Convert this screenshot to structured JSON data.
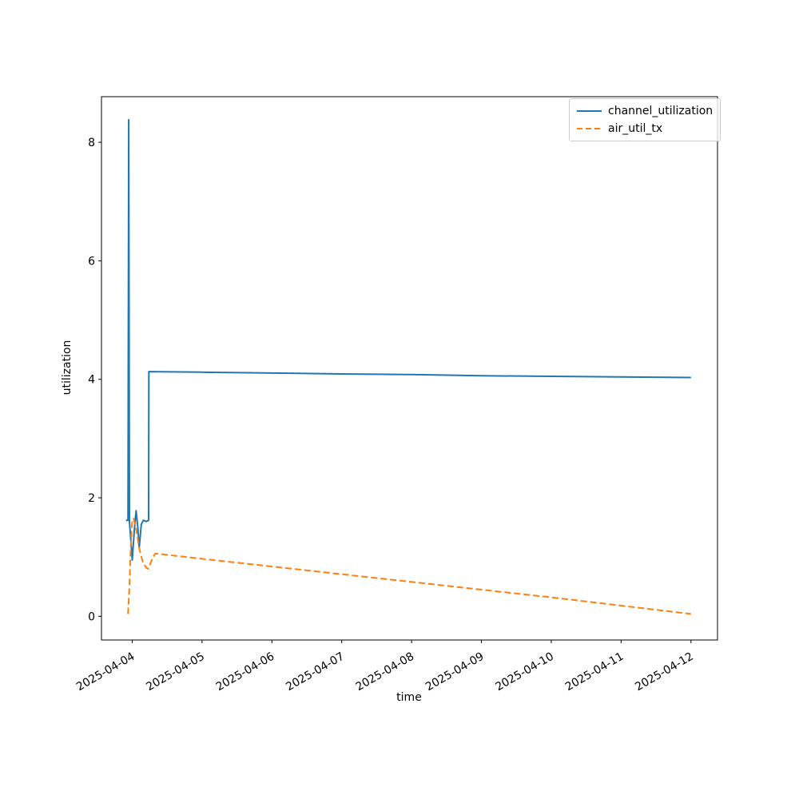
{
  "figure": {
    "background": "#ffffff"
  },
  "chart_data": {
    "type": "line",
    "title": "",
    "xlabel": "time",
    "ylabel": "utilization",
    "grid": false,
    "legend_position": "upper right",
    "x_axis": {
      "unit": "date",
      "tick_labels": [
        "2025-04-04",
        "2025-04-05",
        "2025-04-06",
        "2025-04-07",
        "2025-04-08",
        "2025-04-09",
        "2025-04-10",
        "2025-04-11",
        "2025-04-12"
      ],
      "tick_positions_days": [
        0,
        1,
        2,
        3,
        4,
        5,
        6,
        7,
        8
      ],
      "xlim_days": [
        -0.44,
        8.38
      ],
      "tick_label_rotation_deg": 30
    },
    "y_axis": {
      "tick_labels": [
        "0",
        "2",
        "4",
        "6",
        "8"
      ],
      "tick_values": [
        0,
        2,
        4,
        6,
        8
      ],
      "ylim": [
        -0.4,
        8.77
      ]
    },
    "series": [
      {
        "name": "channel_utilization",
        "color": "#1f77b4",
        "style": "solid",
        "points_days_value": [
          [
            -0.09,
            1.62
          ],
          [
            -0.06,
            1.62
          ],
          [
            -0.05,
            8.38
          ],
          [
            -0.04,
            1.6
          ],
          [
            -0.02,
            1.3
          ],
          [
            0.0,
            0.95
          ],
          [
            0.03,
            1.45
          ],
          [
            0.055,
            1.78
          ],
          [
            0.08,
            1.5
          ],
          [
            0.1,
            1.15
          ],
          [
            0.13,
            1.55
          ],
          [
            0.16,
            1.62
          ],
          [
            0.2,
            1.6
          ],
          [
            0.235,
            1.62
          ],
          [
            0.238,
            4.13
          ],
          [
            1,
            4.12
          ],
          [
            2,
            4.105
          ],
          [
            3,
            4.09
          ],
          [
            4,
            4.08
          ],
          [
            5,
            4.06
          ],
          [
            6,
            4.05
          ],
          [
            7,
            4.04
          ],
          [
            8,
            4.03
          ]
        ]
      },
      {
        "name": "air_util_tx",
        "color": "#ff7f0e",
        "style": "dashed",
        "points_days_value": [
          [
            -0.06,
            0.04
          ],
          [
            -0.04,
            0.5
          ],
          [
            -0.02,
            1.2
          ],
          [
            0.0,
            1.62
          ],
          [
            0.02,
            1.65
          ],
          [
            0.06,
            1.45
          ],
          [
            0.1,
            1.15
          ],
          [
            0.15,
            0.92
          ],
          [
            0.2,
            0.82
          ],
          [
            0.23,
            0.8
          ],
          [
            0.28,
            0.95
          ],
          [
            0.33,
            1.06
          ],
          [
            1,
            0.97
          ],
          [
            2,
            0.84
          ],
          [
            3,
            0.71
          ],
          [
            4,
            0.58
          ],
          [
            5,
            0.45
          ],
          [
            6,
            0.32
          ],
          [
            7,
            0.18
          ],
          [
            8,
            0.04
          ]
        ]
      }
    ]
  }
}
